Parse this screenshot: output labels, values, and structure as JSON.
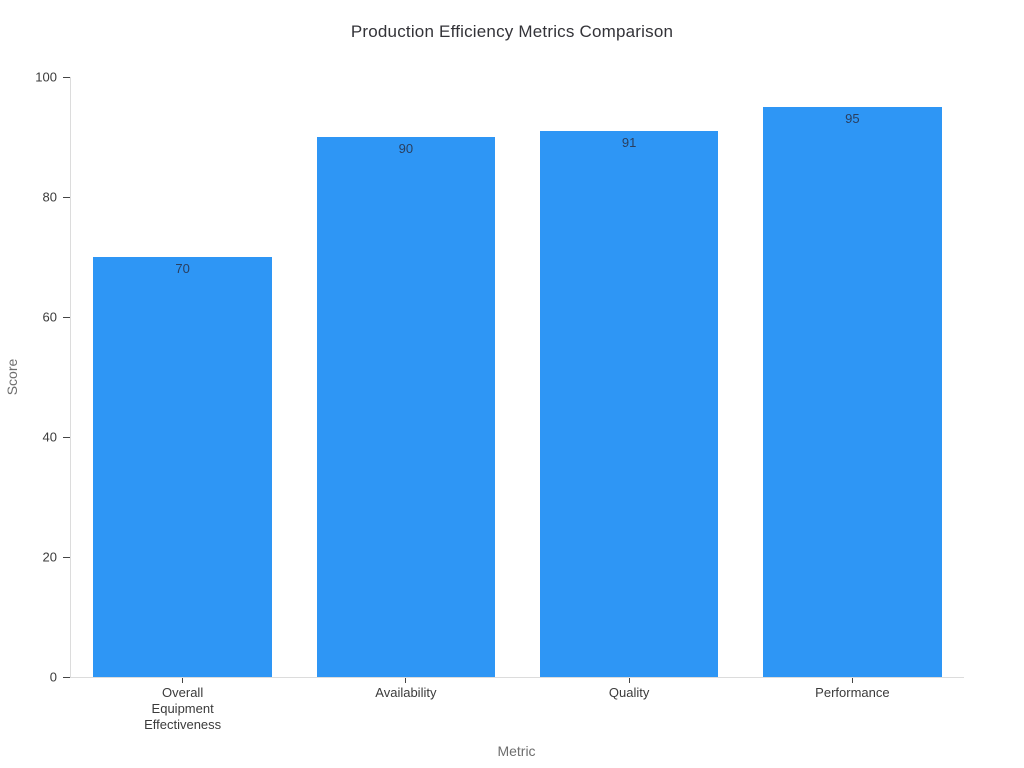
{
  "page": {
    "background": "#ffffff"
  },
  "chart_data": {
    "type": "bar",
    "title": "Production Efficiency Metrics Comparison",
    "xlabel": "Metric",
    "ylabel": "Score",
    "categories": [
      "Overall\nEquipment\nEffectiveness",
      "Availability",
      "Quality",
      "Performance"
    ],
    "values": [
      70,
      90,
      91,
      95
    ],
    "ylim": [
      0,
      100
    ],
    "yticks": [
      0,
      20,
      40,
      60,
      80,
      100
    ],
    "bar_color": "#2e96f5",
    "value_label_color": "#2a3f5f",
    "grid": false,
    "legend": "none",
    "bar_band_fraction": 0.8
  }
}
